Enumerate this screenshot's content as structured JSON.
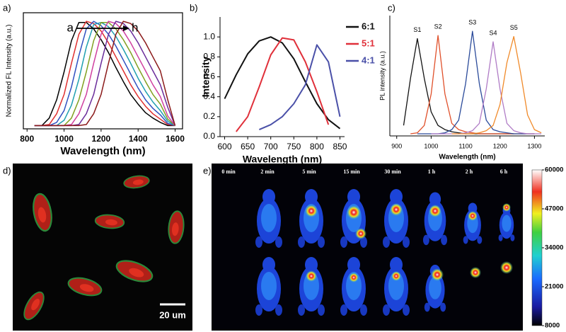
{
  "chart_data": [
    {
      "type": "line",
      "panel": "a)",
      "xlabel": "Wavelength (nm)",
      "ylabel": "Normalized FL Intensity (a.u.)",
      "annotation": {
        "start": "a",
        "end": "h"
      },
      "frame": true,
      "x": [
        840,
        880,
        920,
        960,
        1000,
        1040,
        1080,
        1120,
        1160,
        1200,
        1240,
        1280,
        1320,
        1360,
        1400,
        1440,
        1480,
        1520,
        1560,
        1600
      ],
      "series": [
        {
          "color": "#000000",
          "values": [
            0.03,
            0.03,
            0.1,
            0.27,
            0.53,
            0.82,
            0.99,
            0.99,
            0.93,
            0.83,
            0.71,
            0.57,
            0.44,
            0.32,
            0.23,
            0.15,
            0.1,
            0.06,
            0.03,
            0.03
          ]
        },
        {
          "color": "#e03030",
          "values": [
            0.03,
            0.03,
            0.04,
            0.14,
            0.32,
            0.61,
            0.88,
            1,
            0.98,
            0.91,
            0.8,
            0.67,
            0.54,
            0.41,
            0.3,
            0.21,
            0.14,
            0.09,
            0.04,
            0.03
          ]
        },
        {
          "color": "#3050c0",
          "values": [
            0.03,
            0.03,
            0.03,
            0.06,
            0.17,
            0.39,
            0.68,
            0.93,
            1,
            0.96,
            0.88,
            0.77,
            0.64,
            0.51,
            0.38,
            0.27,
            0.19,
            0.13,
            0.05,
            0.03
          ]
        },
        {
          "color": "#20a0b0",
          "values": [
            0.03,
            0.03,
            0.03,
            0.03,
            0.08,
            0.22,
            0.46,
            0.76,
            0.97,
            0.99,
            0.95,
            0.86,
            0.74,
            0.61,
            0.47,
            0.35,
            0.25,
            0.17,
            0.07,
            0.03
          ]
        },
        {
          "color": "#80a020",
          "values": [
            0.03,
            0.03,
            0.03,
            0.03,
            0.03,
            0.1,
            0.27,
            0.53,
            0.82,
            0.99,
            0.99,
            0.93,
            0.83,
            0.71,
            0.57,
            0.44,
            0.32,
            0.23,
            0.09,
            0.03
          ]
        },
        {
          "color": "#d040a0",
          "values": [
            0.03,
            0.03,
            0.03,
            0.03,
            0.03,
            0.04,
            0.14,
            0.32,
            0.61,
            0.88,
            1,
            0.98,
            0.91,
            0.8,
            0.67,
            0.54,
            0.41,
            0.3,
            0.12,
            0.03
          ]
        },
        {
          "color": "#6a2c9a",
          "values": [
            0.03,
            0.03,
            0.03,
            0.03,
            0.03,
            0.03,
            0.04,
            0.14,
            0.32,
            0.61,
            0.88,
            1,
            0.98,
            0.91,
            0.8,
            0.67,
            0.54,
            0.41,
            0.2,
            0.03
          ]
        },
        {
          "color": "#8b1a1a",
          "values": [
            0.03,
            0.03,
            0.03,
            0.03,
            0.03,
            0.03,
            0.03,
            0.04,
            0.14,
            0.32,
            0.61,
            0.88,
            1,
            0.98,
            0.91,
            0.8,
            0.67,
            0.54,
            0.27,
            0.03
          ]
        }
      ],
      "xlim": [
        780,
        1640
      ],
      "xticks": [
        800,
        1000,
        1200,
        1400,
        1600
      ],
      "ylim": [
        0,
        1.08
      ]
    },
    {
      "type": "line",
      "panel": "b)",
      "xlabel": "Wavelength (nm)",
      "ylabel": "Intensity",
      "legend": "upper-right",
      "frame": false,
      "x": [
        600,
        625,
        650,
        675,
        700,
        725,
        750,
        775,
        800,
        825,
        850
      ],
      "series": [
        {
          "name": "6:1",
          "color": "#111111",
          "values": [
            0.38,
            0.62,
            0.83,
            0.96,
            1.0,
            0.94,
            0.78,
            0.55,
            0.33,
            0.17,
            0.08
          ]
        },
        {
          "name": "5:1",
          "color": "#e0303a",
          "values": [
            null,
            0.05,
            0.2,
            0.5,
            0.82,
            0.99,
            0.97,
            0.75,
            0.45,
            0.12,
            null
          ]
        },
        {
          "name": "4:1",
          "color": "#4a50a8",
          "values": [
            null,
            null,
            null,
            0.07,
            0.12,
            0.2,
            0.33,
            0.52,
            0.92,
            0.75,
            0.2
          ]
        }
      ],
      "xlim": [
        590,
        860
      ],
      "xticks": [
        600,
        650,
        700,
        750,
        800,
        850
      ],
      "ylim": [
        0,
        1.2
      ],
      "yticks": [
        {
          "value": 0,
          "label": "0.0"
        },
        0.2,
        0.4,
        0.6,
        0.8,
        {
          "value": 1,
          "label": "1.0"
        }
      ]
    },
    {
      "type": "line",
      "panel": "c)",
      "xlabel": "Wavelength (nm)",
      "ylabel": "PL intensity (a.u.)",
      "legend": "peak",
      "frame": false,
      "x": [
        920,
        940,
        960,
        980,
        1000,
        1020,
        1040,
        1060,
        1080,
        1100,
        1120,
        1140,
        1160,
        1180,
        1200,
        1220,
        1240,
        1260,
        1280,
        1300,
        1320
      ],
      "series": [
        {
          "name": "S1",
          "color": "#111111",
          "values": [
            0.1,
            0.55,
            0.93,
            0.55,
            0.23,
            0.1,
            0.06,
            0.04,
            0.03,
            0.02,
            0.02,
            0.02,
            0.02,
            0.02,
            0.02,
            0.02,
            0.02,
            null,
            null,
            null,
            null
          ]
        },
        {
          "name": "S2",
          "color": "#e0502a",
          "values": [
            null,
            0.02,
            0.03,
            0.1,
            0.4,
            0.96,
            0.4,
            0.12,
            0.06,
            0.04,
            0.03,
            0.02,
            0.02,
            0.02,
            0.02,
            0.02,
            0.02,
            0.02,
            0.02,
            0.02,
            null
          ]
        },
        {
          "name": "S3",
          "color": "#2a4a9a",
          "values": [
            null,
            null,
            0.02,
            0.02,
            0.02,
            0.02,
            0.03,
            0.06,
            0.15,
            0.5,
            1.0,
            0.5,
            0.15,
            0.06,
            0.04,
            0.03,
            0.02,
            0.02,
            0.02,
            0.02,
            null
          ]
        },
        {
          "name": "S4",
          "color": "#b07cc6",
          "values": [
            null,
            null,
            null,
            null,
            0.02,
            0.02,
            0.02,
            0.02,
            0.02,
            0.03,
            0.05,
            0.12,
            0.45,
            0.9,
            0.45,
            0.12,
            0.05,
            0.03,
            0.02,
            0.02,
            0.02
          ]
        },
        {
          "name": "S5",
          "color": "#f08a2a",
          "values": [
            null,
            null,
            null,
            null,
            null,
            null,
            null,
            0.02,
            0.02,
            0.02,
            0.02,
            0.03,
            0.05,
            0.1,
            0.3,
            0.7,
            0.95,
            0.6,
            0.2,
            0.06,
            0.03
          ]
        }
      ],
      "xlim": [
        880,
        1330
      ],
      "xticks": [
        900,
        1000,
        1100,
        1200,
        1300
      ],
      "ylim": [
        0,
        1.15
      ]
    }
  ],
  "images": {
    "d": {
      "panel": "d)",
      "scale_bar": "20 um"
    },
    "e": {
      "panel": "e)",
      "times": [
        "0 min",
        "2 min",
        "5 min",
        "15 min",
        "30 min",
        "1 h",
        "2 h",
        "6 h"
      ],
      "colorbar": {
        "lim": [
          8000,
          60000
        ],
        "ticks": [
          60000,
          47000,
          34000,
          21000,
          8000
        ]
      }
    }
  }
}
